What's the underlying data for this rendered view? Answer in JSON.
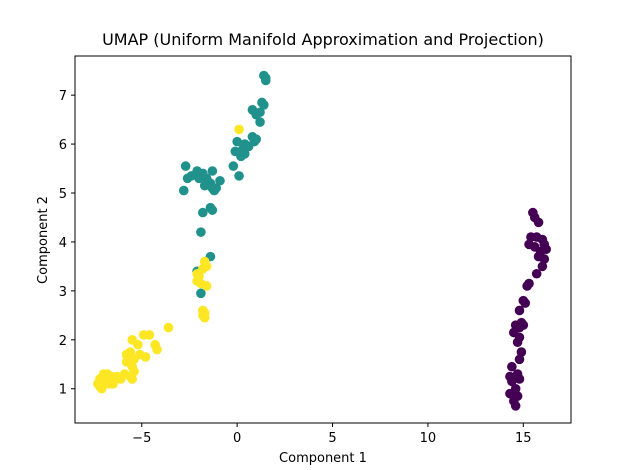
{
  "chart_data": {
    "type": "scatter",
    "title": "UMAP (Uniform Manifold Approximation and Projection)",
    "xlabel": "Component 1",
    "ylabel": "Component 2",
    "xlim": [
      -8.5,
      17.5
    ],
    "ylim": [
      0.3,
      7.8
    ],
    "xticks": [
      -5,
      0,
      5,
      10,
      15
    ],
    "yticks": [
      1,
      2,
      3,
      4,
      5,
      6,
      7
    ],
    "grid": false,
    "legend": "none",
    "series": [
      {
        "color": "#440154",
        "points": [
          [
            15.5,
            4.6
          ],
          [
            15.6,
            4.5
          ],
          [
            15.8,
            4.4
          ],
          [
            15.4,
            4.1
          ],
          [
            15.7,
            4.1
          ],
          [
            16.0,
            4.05
          ],
          [
            16.1,
            3.95
          ],
          [
            15.3,
            3.95
          ],
          [
            15.6,
            3.9
          ],
          [
            16.2,
            3.85
          ],
          [
            15.9,
            3.8
          ],
          [
            15.8,
            3.7
          ],
          [
            16.1,
            3.65
          ],
          [
            16.0,
            3.5
          ],
          [
            15.7,
            3.35
          ],
          [
            15.3,
            3.15
          ],
          [
            15.2,
            3.1
          ],
          [
            15.0,
            2.8
          ],
          [
            15.1,
            2.75
          ],
          [
            14.8,
            2.6
          ],
          [
            14.9,
            2.35
          ],
          [
            15.0,
            2.3
          ],
          [
            14.6,
            2.3
          ],
          [
            14.8,
            2.25
          ],
          [
            14.5,
            2.15
          ],
          [
            14.8,
            2.05
          ],
          [
            14.7,
            1.95
          ],
          [
            14.9,
            1.75
          ],
          [
            14.8,
            1.6
          ],
          [
            14.4,
            1.45
          ],
          [
            14.7,
            1.3
          ],
          [
            14.8,
            1.2
          ],
          [
            14.3,
            1.25
          ],
          [
            14.4,
            1.15
          ],
          [
            14.6,
            1.0
          ],
          [
            14.3,
            0.9
          ],
          [
            14.7,
            0.85
          ],
          [
            14.5,
            0.75
          ],
          [
            14.6,
            0.65
          ]
        ]
      },
      {
        "color": "#21918c",
        "points": [
          [
            1.4,
            7.4
          ],
          [
            1.5,
            7.35
          ],
          [
            1.5,
            7.3
          ],
          [
            1.3,
            6.85
          ],
          [
            1.4,
            6.8
          ],
          [
            0.8,
            6.7
          ],
          [
            1.0,
            6.6
          ],
          [
            1.2,
            6.65
          ],
          [
            1.2,
            6.45
          ],
          [
            0.8,
            6.15
          ],
          [
            1.0,
            6.1
          ],
          [
            0.9,
            6.05
          ],
          [
            0.0,
            6.05
          ],
          [
            0.4,
            6.0
          ],
          [
            0.6,
            5.95
          ],
          [
            0.3,
            5.9
          ],
          [
            -0.1,
            5.85
          ],
          [
            0.4,
            5.8
          ],
          [
            0.2,
            5.75
          ],
          [
            -0.2,
            5.55
          ],
          [
            -2.7,
            5.55
          ],
          [
            -2.1,
            5.45
          ],
          [
            -1.8,
            5.4
          ],
          [
            -1.3,
            5.45
          ],
          [
            -1.6,
            5.3
          ],
          [
            -2.4,
            5.35
          ],
          [
            -2.6,
            5.3
          ],
          [
            -2.0,
            5.3
          ],
          [
            -1.4,
            5.2
          ],
          [
            -0.9,
            5.25
          ],
          [
            -1.7,
            5.15
          ],
          [
            -1.3,
            5.1
          ],
          [
            -1.1,
            5.1
          ],
          [
            -1.2,
            5.05
          ],
          [
            0.1,
            5.35
          ],
          [
            -2.8,
            5.05
          ],
          [
            -1.4,
            4.7
          ],
          [
            -1.3,
            4.65
          ],
          [
            -1.8,
            4.6
          ],
          [
            -1.9,
            4.2
          ],
          [
            -1.4,
            3.7
          ],
          [
            -2.1,
            3.4
          ],
          [
            -1.9,
            2.95
          ]
        ]
      },
      {
        "color": "#fde725",
        "points": [
          [
            0.1,
            6.3
          ],
          [
            -1.7,
            3.6
          ],
          [
            -1.6,
            3.5
          ],
          [
            -1.8,
            3.45
          ],
          [
            -2.1,
            3.35
          ],
          [
            -2.0,
            3.3
          ],
          [
            -2.1,
            3.2
          ],
          [
            -1.9,
            3.15
          ],
          [
            -1.6,
            3.1
          ],
          [
            -1.8,
            2.6
          ],
          [
            -1.7,
            2.55
          ],
          [
            -1.8,
            2.5
          ],
          [
            -1.7,
            2.45
          ],
          [
            -3.6,
            2.25
          ],
          [
            -4.9,
            2.1
          ],
          [
            -4.6,
            2.1
          ],
          [
            -5.5,
            2.0
          ],
          [
            -5.2,
            1.9
          ],
          [
            -4.3,
            1.9
          ],
          [
            -4.2,
            1.8
          ],
          [
            -5.6,
            1.75
          ],
          [
            -5.8,
            1.7
          ],
          [
            -5.1,
            1.7
          ],
          [
            -4.8,
            1.65
          ],
          [
            -5.4,
            1.6
          ],
          [
            -5.8,
            1.55
          ],
          [
            -5.5,
            1.45
          ],
          [
            -5.4,
            1.35
          ],
          [
            -5.9,
            1.3
          ],
          [
            -6.8,
            1.3
          ],
          [
            -7.0,
            1.3
          ],
          [
            -6.6,
            1.25
          ],
          [
            -6.3,
            1.25
          ],
          [
            -5.6,
            1.25
          ],
          [
            -5.5,
            1.2
          ],
          [
            -6.1,
            1.2
          ],
          [
            -7.2,
            1.2
          ],
          [
            -6.9,
            1.15
          ],
          [
            -7.0,
            1.1
          ],
          [
            -6.7,
            1.1
          ],
          [
            -7.3,
            1.1
          ],
          [
            -7.2,
            1.05
          ],
          [
            -7.1,
            1.0
          ],
          [
            -6.5,
            1.1
          ]
        ]
      }
    ]
  }
}
